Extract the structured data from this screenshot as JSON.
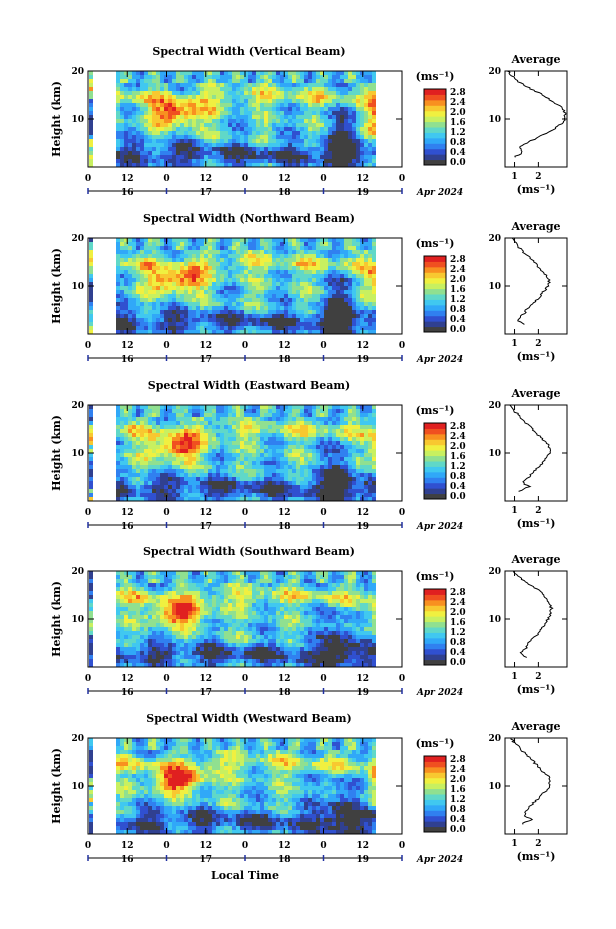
{
  "figure": {
    "xlabel": "Local Time",
    "date_label": "Apr 2024"
  },
  "colorbar": {
    "unit": "(ms⁻¹)",
    "ticks": [
      "2.8",
      "2.4",
      "2.0",
      "1.6",
      "1.2",
      "0.8",
      "0.4",
      "0.0"
    ],
    "colors": [
      "#404040",
      "#304090",
      "#3050d0",
      "#3080f0",
      "#30a8f8",
      "#40c8f0",
      "#60d8c8",
      "#90e090",
      "#c8f060",
      "#f0f040",
      "#f8c830",
      "#f89020",
      "#f05020",
      "#e02020"
    ]
  },
  "chart_data": [
    {
      "type": "heatmap",
      "title": "Spectral Width (Vertical Beam)",
      "ylabel": "Height (km)",
      "y_ticks": [
        "20",
        "10"
      ],
      "x_ticks": [
        "0",
        "12",
        "0",
        "12",
        "0",
        "12",
        "0",
        "12",
        "0"
      ],
      "day_labels": [
        "16",
        "17",
        "18",
        "19"
      ],
      "zlim": [
        0.0,
        2.8
      ],
      "profile": {
        "title": "Average",
        "xlabel": "(ms⁻¹)",
        "x_ticks": [
          "1",
          "2"
        ],
        "y_ticks": [
          "20",
          "10"
        ],
        "height_km": [
          2,
          3,
          4,
          5,
          6,
          7,
          8,
          9,
          10,
          11,
          12,
          13,
          14,
          15,
          16,
          17,
          18,
          19,
          20
        ],
        "width_ms": [
          1.0,
          1.3,
          1.2,
          1.5,
          1.9,
          2.3,
          2.7,
          2.95,
          3.1,
          3.15,
          3.05,
          2.8,
          2.5,
          2.2,
          1.8,
          1.4,
          1.1,
          0.9,
          0.7
        ]
      }
    },
    {
      "type": "heatmap",
      "title": "Spectral Width (Northward Beam)",
      "ylabel": "Height (km)",
      "y_ticks": [
        "20",
        "10"
      ],
      "x_ticks": [
        "0",
        "12",
        "0",
        "12",
        "0",
        "12",
        "0",
        "12",
        "0"
      ],
      "day_labels": [
        "16",
        "17",
        "18",
        "19"
      ],
      "zlim": [
        0.0,
        2.8
      ],
      "profile": {
        "title": "Average",
        "xlabel": "(ms⁻¹)",
        "x_ticks": [
          "1",
          "2"
        ],
        "y_ticks": [
          "20",
          "10"
        ],
        "height_km": [
          2,
          3,
          4,
          5,
          6,
          7,
          8,
          9,
          10,
          11,
          12,
          13,
          14,
          15,
          16,
          17,
          18,
          19,
          20
        ],
        "width_ms": [
          1.4,
          1.1,
          1.35,
          1.5,
          1.7,
          1.9,
          2.1,
          2.25,
          2.4,
          2.45,
          2.35,
          2.2,
          2.0,
          1.8,
          1.6,
          1.4,
          1.2,
          1.05,
          0.9
        ]
      }
    },
    {
      "type": "heatmap",
      "title": "Spectral Width (Eastward Beam)",
      "ylabel": "Height (km)",
      "y_ticks": [
        "20",
        "10"
      ],
      "x_ticks": [
        "0",
        "12",
        "0",
        "12",
        "0",
        "12",
        "0",
        "12",
        "0"
      ],
      "day_labels": [
        "16",
        "17",
        "18",
        "19"
      ],
      "zlim": [
        0.0,
        2.8
      ],
      "profile": {
        "title": "Average",
        "xlabel": "(ms⁻¹)",
        "x_ticks": [
          "1",
          "2"
        ],
        "y_ticks": [
          "20",
          "10"
        ],
        "height_km": [
          2,
          3,
          4,
          5,
          6,
          7,
          8,
          9,
          10,
          11,
          12,
          13,
          14,
          15,
          16,
          17,
          18,
          19,
          20
        ],
        "width_ms": [
          1.2,
          1.6,
          1.3,
          1.6,
          1.8,
          2.0,
          2.2,
          2.35,
          2.45,
          2.5,
          2.35,
          2.15,
          1.95,
          1.75,
          1.55,
          1.35,
          1.15,
          0.95,
          0.8
        ]
      }
    },
    {
      "type": "heatmap",
      "title": "Spectral Width (Southward Beam)",
      "ylabel": "Height (km)",
      "y_ticks": [
        "20",
        "10"
      ],
      "x_ticks": [
        "0",
        "12",
        "0",
        "12",
        "0",
        "12",
        "0",
        "12",
        "0"
      ],
      "day_labels": [
        "16",
        "17",
        "18",
        "19"
      ],
      "zlim": [
        0.0,
        2.8
      ],
      "profile": {
        "title": "Average",
        "xlabel": "(ms⁻¹)",
        "x_ticks": [
          "1",
          "2"
        ],
        "y_ticks": [
          "20",
          "10"
        ],
        "height_km": [
          2,
          3,
          4,
          5,
          6,
          7,
          8,
          9,
          10,
          11,
          12,
          13,
          14,
          15,
          16,
          17,
          18,
          19,
          20
        ],
        "width_ms": [
          1.5,
          1.3,
          1.5,
          1.6,
          1.8,
          2.0,
          2.15,
          2.3,
          2.4,
          2.5,
          2.55,
          2.5,
          2.4,
          2.2,
          2.0,
          1.7,
          1.4,
          1.15,
          0.95
        ]
      }
    },
    {
      "type": "heatmap",
      "title": "Spectral Width (Westward Beam)",
      "ylabel": "Height (km)",
      "y_ticks": [
        "20",
        "10"
      ],
      "x_ticks": [
        "0",
        "12",
        "0",
        "12",
        "0",
        "12",
        "0",
        "12",
        "0"
      ],
      "day_labels": [
        "16",
        "17",
        "18",
        "19"
      ],
      "zlim": [
        0.0,
        2.8
      ],
      "profile": {
        "title": "Average",
        "xlabel": "(ms⁻¹)",
        "x_ticks": [
          "1",
          "2"
        ],
        "y_ticks": [
          "20",
          "10"
        ],
        "height_km": [
          2,
          3,
          4,
          5,
          6,
          7,
          8,
          9,
          10,
          11,
          12,
          13,
          14,
          15,
          16,
          17,
          18,
          19,
          20
        ],
        "width_ms": [
          1.3,
          1.7,
          1.4,
          1.5,
          1.7,
          1.9,
          2.1,
          2.3,
          2.45,
          2.5,
          2.4,
          2.2,
          2.0,
          1.8,
          1.6,
          1.4,
          1.2,
          1.0,
          0.85
        ]
      }
    }
  ]
}
